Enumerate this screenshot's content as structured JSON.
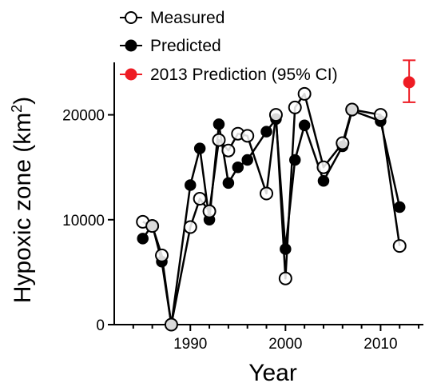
{
  "chart_data": {
    "type": "line",
    "xlabel": "Year",
    "ylabel": "Hypoxic zone (km",
    "ylabel_superscript": "2",
    "ylabel_suffix": ")",
    "xlim": [
      1982,
      2014.5
    ],
    "ylim": [
      0,
      25000
    ],
    "xticks": [
      1990,
      2000,
      2010
    ],
    "yticks": [
      0,
      10000,
      20000
    ],
    "grid": false,
    "legend_position": "top-left",
    "series": [
      {
        "name": "Measured",
        "marker": "open-circle",
        "color": "#000000",
        "x": [
          1985,
          1986,
          1987,
          1988,
          1990,
          1991,
          1992,
          1993,
          1994,
          1995,
          1996,
          1998,
          1999,
          2000,
          2001,
          2002,
          2004,
          2006,
          2007,
          2010,
          2012
        ],
        "y": [
          9800,
          9400,
          6600,
          0,
          9300,
          12000,
          10800,
          17600,
          16600,
          18200,
          18000,
          12500,
          20000,
          4400,
          20700,
          22000,
          15000,
          17300,
          20500,
          20000,
          7500
        ]
      },
      {
        "name": "Predicted",
        "marker": "filled-circle",
        "color": "#000000",
        "x": [
          1985,
          1986,
          1987,
          1988,
          1990,
          1991,
          1992,
          1993,
          1994,
          1995,
          1996,
          1998,
          1999,
          2000,
          2001,
          2002,
          2004,
          2006,
          2007,
          2010,
          2012
        ],
        "y": [
          8200,
          9500,
          6000,
          0,
          13300,
          16800,
          10000,
          19100,
          13500,
          15000,
          15700,
          18400,
          19600,
          7200,
          15700,
          19000,
          13700,
          17000,
          20400,
          19400,
          11200
        ]
      },
      {
        "name": "2013 Prediction (95% CI)",
        "marker": "filled-circle",
        "color": "#ee1c24",
        "x": [
          2013
        ],
        "y": [
          23100
        ],
        "error_low": [
          21200
        ],
        "error_high": [
          25200
        ]
      }
    ]
  }
}
